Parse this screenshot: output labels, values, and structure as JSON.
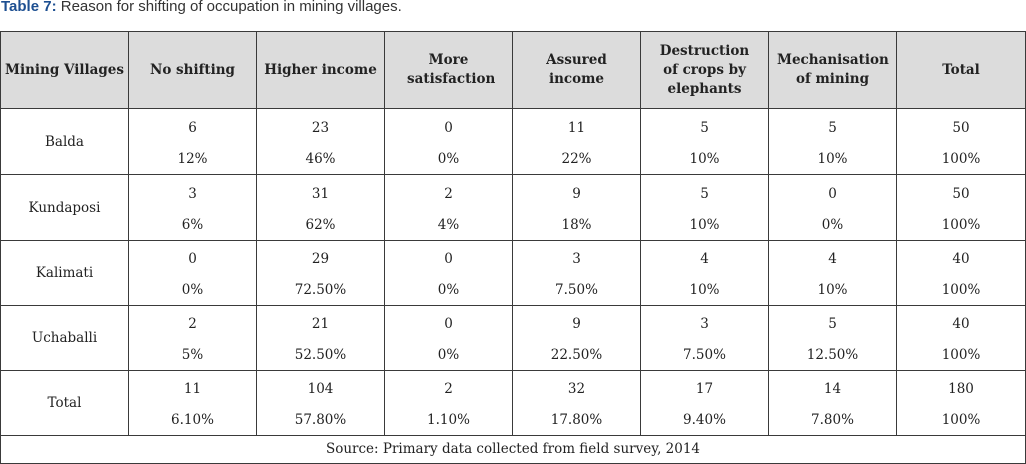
{
  "caption": {
    "label": "Table 7:",
    "text": " Reason for shifting of occupation in mining villages."
  },
  "headers": [
    "Mining Villages",
    "No shifting",
    "Higher income",
    "More satisfaction",
    "Assured income",
    "Destruction of crops by elephants",
    "Mechanisation of mining",
    "Total"
  ],
  "rows": [
    {
      "village": "Balda",
      "counts": [
        "6",
        "23",
        "0",
        "11",
        "5",
        "5",
        "50"
      ],
      "percents": [
        "12%",
        "46%",
        "0%",
        "22%",
        "10%",
        "10%",
        "100%"
      ]
    },
    {
      "village": "Kundaposi",
      "counts": [
        "3",
        "31",
        "2",
        "9",
        "5",
        "0",
        "50"
      ],
      "percents": [
        "6%",
        "62%",
        "4%",
        "18%",
        "10%",
        "0%",
        "100%"
      ]
    },
    {
      "village": "Kalimati",
      "counts": [
        "0",
        "29",
        "0",
        "3",
        "4",
        "4",
        "40"
      ],
      "percents": [
        "0%",
        "72.50%",
        "0%",
        "7.50%",
        "10%",
        "10%",
        "100%"
      ]
    },
    {
      "village": "Uchaballi",
      "counts": [
        "2",
        "21",
        "0",
        "9",
        "3",
        "5",
        "40"
      ],
      "percents": [
        "5%",
        "52.50%",
        "0%",
        "22.50%",
        "7.50%",
        "12.50%",
        "100%"
      ]
    },
    {
      "village": "Total",
      "counts": [
        "11",
        "104",
        "2",
        "32",
        "17",
        "14",
        "180"
      ],
      "percents": [
        "6.10%",
        "57.80%",
        "1.10%",
        "17.80%",
        "9.40%",
        "7.80%",
        "100%"
      ]
    }
  ],
  "source": "Source: Primary data collected from field survey, 2014"
}
